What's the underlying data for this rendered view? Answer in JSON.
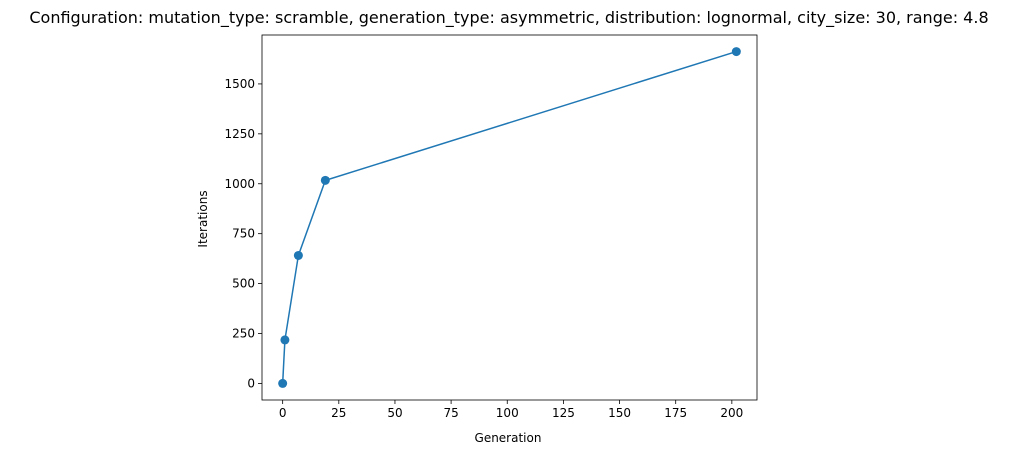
{
  "chart_data": {
    "type": "line",
    "title": "Configuration: mutation_type: scramble, generation_type: asymmetric, distribution: lognormal, city_size: 30, range: 4.8",
    "xlabel": "Generation",
    "ylabel": "Iterations",
    "xlim": [
      -9.2,
      211.2
    ],
    "ylim": [
      -83,
      1745
    ],
    "x_ticks": [
      0,
      25,
      50,
      75,
      100,
      125,
      150,
      175,
      200
    ],
    "y_ticks": [
      0,
      250,
      500,
      750,
      1000,
      1250,
      1500
    ],
    "grid": false,
    "series": [
      {
        "x": [
          0,
          1,
          7,
          19,
          202
        ],
        "values": [
          0,
          218,
          641,
          1017,
          1662
        ],
        "color": "#1f77b4",
        "marker": "circle"
      }
    ]
  }
}
